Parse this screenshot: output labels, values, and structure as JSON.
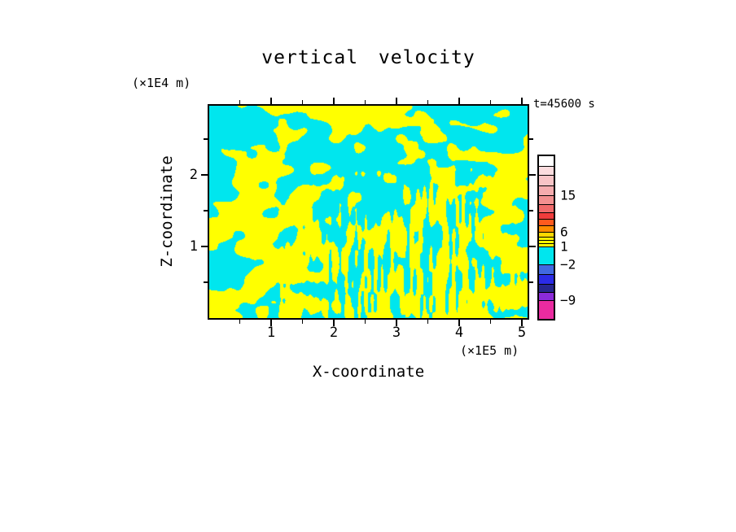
{
  "title": "vertical velocity",
  "time_label": "t=45600 s",
  "axes": {
    "x_label": "X-coordinate",
    "x_unit": "(×1E5 m)",
    "x_ticks": [
      1,
      2,
      3,
      4,
      5
    ],
    "x_minor_ticks": [
      0.5,
      1.5,
      2.5,
      3.5,
      4.5
    ],
    "z_label": "Z-coordinate",
    "z_unit": "(×1E4 m)",
    "z_ticks": [
      1,
      2
    ],
    "z_minor_ticks": [
      0.5,
      1.5,
      2.5
    ]
  },
  "field": {
    "negative_color": "#00E6EE",
    "positive_color": "#FFFF00"
  },
  "colorbar": {
    "labels": [
      {
        "text": "15",
        "at": 48
      },
      {
        "text": "6",
        "at": 93
      },
      {
        "text": "1",
        "at": 111
      },
      {
        "text": "−2",
        "at": 133
      },
      {
        "text": "−9",
        "at": 177
      }
    ],
    "segments_bottom_to_top": [
      {
        "color": "#EA2BA0",
        "h": 23
      },
      {
        "color": "#8B2BD9",
        "h": 10
      },
      {
        "color": "#26268F",
        "h": 10
      },
      {
        "color": "#2B2BE6",
        "h": 12
      },
      {
        "color": "#4169E1",
        "h": 12
      },
      {
        "color": "#00E6EE",
        "h": 22
      },
      {
        "color": "#FFFF00",
        "h": 4
      },
      {
        "color": "#FFFF00",
        "h": 4
      },
      {
        "color": "#FFF200",
        "h": 4
      },
      {
        "color": "#FFD700",
        "h": 6
      },
      {
        "color": "#FF8C00",
        "h": 8
      },
      {
        "color": "#FF5A1E",
        "h": 8
      },
      {
        "color": "#F03C3C",
        "h": 8
      },
      {
        "color": "#F06A6A",
        "h": 10
      },
      {
        "color": "#F29090",
        "h": 11
      },
      {
        "color": "#F5ACAE",
        "h": 12
      },
      {
        "color": "#F8C4C6",
        "h": 13
      },
      {
        "color": "#FBDCDE",
        "h": 11
      },
      {
        "color": "#FFFFFF",
        "h": 12
      }
    ]
  },
  "chart_data": {
    "type": "heatmap",
    "title": "vertical velocity",
    "annotation": "t=45600 s",
    "xlabel": "X-coordinate",
    "x_unit": "(×1E5 m)",
    "xlim": [
      0,
      5.1
    ],
    "x_ticks": [
      1,
      2,
      3,
      4,
      5
    ],
    "ylabel": "Z-coordinate",
    "y_unit": "(×1E4 m)",
    "ylim": [
      0,
      3
    ],
    "y_ticks": [
      1,
      2
    ],
    "legend_position": "right",
    "colorbar_level_labels": [
      -9,
      -2,
      1,
      6,
      15
    ],
    "rendering": "two-level contour fill",
    "fill_colors": {
      "negative_or_low": "#00E6EE",
      "positive_or_high": "#FFFF00"
    },
    "description": "Turbulent binary field of vertical velocity: alternating cyan (negative/downdraft) and yellow (positive/updraft) cells. Broad tilted elongated cells in the upper-left, a large cyan region across the upper middle, and fine vertical striations in the lower middle-right (x≈2–4.7 ×1E5 m); yellow dominates near the bottom boundary."
  }
}
